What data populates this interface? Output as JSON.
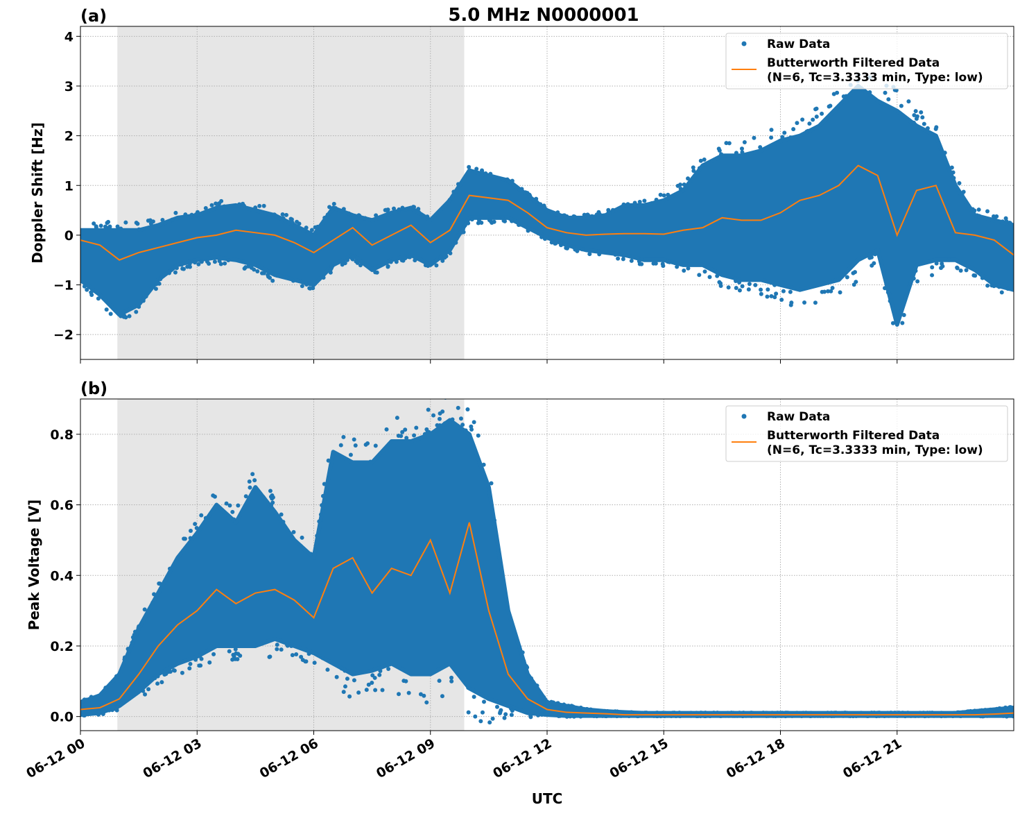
{
  "figure_title": "5.0 MHz N0000001",
  "xlabel": "UTC",
  "colors": {
    "raw": "#1f77b4",
    "filtered": "#ff7f0e",
    "shade": "#e6e6e6",
    "grid": "#b0b0b0"
  },
  "chart_data": [
    {
      "type": "scatter+line",
      "panel_label": "(a)",
      "ylabel": "Doppler Shift [Hz]",
      "xlim_hours": [
        0,
        24
      ],
      "ylim": [
        -2.5,
        4.2
      ],
      "yticks": [
        -2,
        -1,
        0,
        1,
        2,
        3,
        4
      ],
      "ytick_labels": [
        "−2",
        "−1",
        "0",
        "1",
        "2",
        "3",
        "4"
      ],
      "xtick_hours": [
        0,
        3,
        6,
        9,
        12,
        15,
        18,
        21
      ],
      "xtick_labels": [
        "06-12 00",
        "06-12 03",
        "06-12 06",
        "06-12 09",
        "06-12 12",
        "06-12 15",
        "06-12 18",
        "06-12 21"
      ],
      "shaded_interval_hours": [
        0.95,
        9.87
      ],
      "grid": true,
      "legend_placement": "top-right",
      "legend": [
        "Raw Data",
        "Butterworth Filtered Data",
        "(N=6, Tc=3.3333 min, Type: low)"
      ],
      "x_hours": [
        0,
        0.5,
        1,
        1.5,
        2,
        2.5,
        3,
        3.5,
        4,
        4.5,
        5,
        5.5,
        6,
        6.5,
        7,
        7.5,
        8,
        8.5,
        9,
        9.5,
        10,
        10.5,
        11,
        11.5,
        12,
        12.5,
        13,
        13.5,
        14,
        14.5,
        15,
        15.5,
        16,
        16.5,
        17,
        17.5,
        18,
        18.5,
        19,
        19.5,
        20,
        20.5,
        21,
        21.5,
        22,
        22.5,
        23,
        23.5,
        24
      ],
      "series": [
        {
          "name": "Butterworth Filtered Data",
          "values": [
            -0.1,
            -0.2,
            -0.5,
            -0.35,
            -0.25,
            -0.15,
            -0.05,
            0.0,
            0.1,
            0.05,
            0.0,
            -0.15,
            -0.35,
            -0.1,
            0.15,
            -0.2,
            0.0,
            0.2,
            -0.15,
            0.1,
            0.8,
            0.75,
            0.7,
            0.45,
            0.15,
            0.05,
            0.0,
            0.02,
            0.03,
            0.03,
            0.02,
            0.1,
            0.15,
            0.35,
            0.3,
            0.3,
            0.45,
            0.7,
            0.8,
            1.0,
            1.4,
            1.2,
            0.0,
            0.9,
            1.0,
            0.05,
            0.0,
            -0.1,
            -0.4
          ]
        },
        {
          "name": "Raw Data",
          "low": [
            -0.9,
            -1.2,
            -1.6,
            -1.4,
            -0.9,
            -0.6,
            -0.5,
            -0.45,
            -0.5,
            -0.6,
            -0.8,
            -0.9,
            -1.0,
            -0.6,
            -0.4,
            -0.7,
            -0.5,
            -0.4,
            -0.6,
            -0.3,
            0.35,
            0.35,
            0.35,
            0.15,
            -0.05,
            -0.2,
            -0.3,
            -0.35,
            -0.4,
            -0.5,
            -0.5,
            -0.6,
            -0.6,
            -0.8,
            -0.9,
            -0.9,
            -1.0,
            -1.1,
            -1.0,
            -0.9,
            -0.5,
            -0.3,
            -1.8,
            -0.6,
            -0.5,
            -0.5,
            -0.7,
            -1.0,
            -1.1
          ],
          "high": [
            0.1,
            0.1,
            0.1,
            0.1,
            0.2,
            0.35,
            0.4,
            0.55,
            0.6,
            0.5,
            0.4,
            0.2,
            0.0,
            0.55,
            0.4,
            0.3,
            0.45,
            0.55,
            0.3,
            0.7,
            1.3,
            1.2,
            1.1,
            0.8,
            0.5,
            0.35,
            0.35,
            0.4,
            0.6,
            0.6,
            0.7,
            0.9,
            1.4,
            1.6,
            1.6,
            1.7,
            1.9,
            2.0,
            2.2,
            2.6,
            3.0,
            2.7,
            2.5,
            2.2,
            2.0,
            1.0,
            0.4,
            0.3,
            0.2
          ]
        }
      ]
    },
    {
      "type": "scatter+line",
      "panel_label": "(b)",
      "ylabel": "Peak Voltage [V]",
      "xlim_hours": [
        0,
        24
      ],
      "ylim": [
        -0.04,
        0.9
      ],
      "yticks": [
        0.0,
        0.2,
        0.4,
        0.6,
        0.8
      ],
      "ytick_labels": [
        "0.0",
        "0.2",
        "0.4",
        "0.6",
        "0.8"
      ],
      "xtick_hours": [
        0,
        3,
        6,
        9,
        12,
        15,
        18,
        21
      ],
      "xtick_labels": [
        "06-12 00",
        "06-12 03",
        "06-12 06",
        "06-12 09",
        "06-12 12",
        "06-12 15",
        "06-12 18",
        "06-12 21"
      ],
      "shaded_interval_hours": [
        0.95,
        9.87
      ],
      "grid": true,
      "legend_placement": "top-right",
      "legend": [
        "Raw Data",
        "Butterworth Filtered Data",
        "(N=6, Tc=3.3333 min, Type: low)"
      ],
      "x_hours": [
        0,
        0.5,
        1,
        1.5,
        2,
        2.5,
        3,
        3.5,
        4,
        4.5,
        5,
        5.5,
        6,
        6.5,
        7,
        7.5,
        8,
        8.5,
        9,
        9.5,
        10,
        10.5,
        11,
        11.5,
        12,
        12.5,
        13,
        13.5,
        14,
        14.5,
        15,
        15.5,
        16,
        16.5,
        17,
        17.5,
        18,
        18.5,
        19,
        19.5,
        20,
        20.5,
        21,
        21.5,
        22,
        22.5,
        23,
        23.5,
        24
      ],
      "series": [
        {
          "name": "Butterworth Filtered Data",
          "values": [
            0.02,
            0.025,
            0.05,
            0.12,
            0.2,
            0.26,
            0.3,
            0.36,
            0.32,
            0.35,
            0.36,
            0.33,
            0.28,
            0.42,
            0.45,
            0.35,
            0.42,
            0.4,
            0.5,
            0.35,
            0.55,
            0.3,
            0.12,
            0.05,
            0.02,
            0.012,
            0.01,
            0.008,
            0.005,
            0.005,
            0.005,
            0.005,
            0.005,
            0.005,
            0.005,
            0.005,
            0.005,
            0.005,
            0.005,
            0.005,
            0.005,
            0.005,
            0.005,
            0.005,
            0.005,
            0.005,
            0.005,
            0.007,
            0.01
          ]
        },
        {
          "name": "Raw Data",
          "low": [
            0.005,
            0.01,
            0.03,
            0.07,
            0.12,
            0.15,
            0.17,
            0.2,
            0.2,
            0.2,
            0.22,
            0.2,
            0.18,
            0.15,
            0.12,
            0.13,
            0.15,
            0.12,
            0.12,
            0.15,
            0.08,
            0.05,
            0.03,
            0.01,
            0.005,
            0.002,
            0.002,
            0.002,
            0.002,
            0.002,
            0.002,
            0.002,
            0.002,
            0.002,
            0.002,
            0.002,
            0.002,
            0.002,
            0.002,
            0.002,
            0.002,
            0.002,
            0.002,
            0.002,
            0.002,
            0.002,
            0.002,
            0.002,
            0.002
          ],
          "high": [
            0.04,
            0.06,
            0.12,
            0.25,
            0.35,
            0.45,
            0.52,
            0.6,
            0.55,
            0.65,
            0.58,
            0.5,
            0.45,
            0.75,
            0.72,
            0.72,
            0.78,
            0.78,
            0.8,
            0.84,
            0.8,
            0.65,
            0.3,
            0.12,
            0.04,
            0.03,
            0.02,
            0.015,
            0.012,
            0.01,
            0.01,
            0.01,
            0.01,
            0.01,
            0.01,
            0.01,
            0.01,
            0.01,
            0.01,
            0.01,
            0.01,
            0.01,
            0.01,
            0.01,
            0.01,
            0.01,
            0.015,
            0.02,
            0.025
          ]
        }
      ]
    }
  ]
}
